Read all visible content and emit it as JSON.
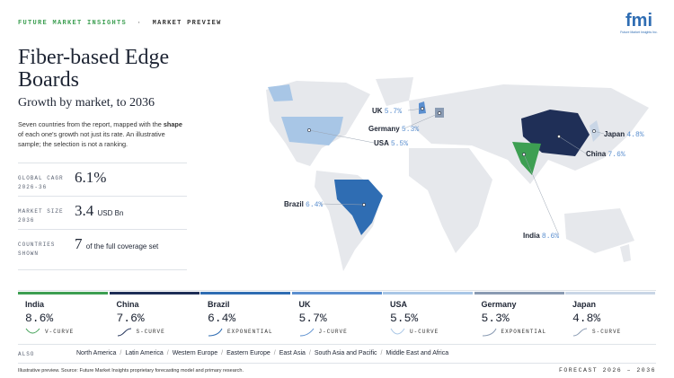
{
  "header": {
    "brand": "FUTURE MARKET INSIGHTS",
    "separator": "·",
    "section": "MARKET PREVIEW",
    "logo": "fmi",
    "logo_caption": "Future Market Insights Inc."
  },
  "title": "Fiber-based Edge Boards",
  "subtitle": "Growth by market, to 2036",
  "description": {
    "before": "Seven countries from the report, mapped with the ",
    "bold": "shape",
    "after": " of each one's growth not just its rate. An illustrative sample; the selection is not a ranking."
  },
  "stats": [
    {
      "label": "GLOBAL CAGR 2026-36",
      "value": "6.1%",
      "unit": ""
    },
    {
      "label": "MARKET SIZE 2036",
      "value": "3.4",
      "unit": "USD Bn"
    },
    {
      "label": "COUNTRIES SHOWN",
      "value": "7",
      "unit": "of the full coverage set"
    }
  ],
  "countries": [
    {
      "name": "India",
      "cagr": "8.6%",
      "curve": "V-CURVE",
      "color": "#3d9f52"
    },
    {
      "name": "China",
      "cagr": "7.6%",
      "curve": "S-CURVE",
      "color": "#1f2f57"
    },
    {
      "name": "Brazil",
      "cagr": "6.4%",
      "curve": "EXPONENTIAL",
      "color": "#2f6db3"
    },
    {
      "name": "UK",
      "cagr": "5.7%",
      "curve": "J-CURVE",
      "color": "#5b8fcf"
    },
    {
      "name": "USA",
      "cagr": "5.5%",
      "curve": "U-CURVE",
      "color": "#a8c6e6"
    },
    {
      "name": "Germany",
      "cagr": "5.3%",
      "curve": "EXPONENTIAL",
      "color": "#8a9bb3"
    },
    {
      "name": "Japan",
      "cagr": "4.8%",
      "curve": "S-CURVE",
      "color": "#c9d6e6"
    }
  ],
  "also": {
    "label": "ALSO",
    "regions": [
      "North America",
      "Latin America",
      "Western Europe",
      "Eastern Europe",
      "East Asia",
      "South Asia and Pacific",
      "Middle East and Africa"
    ]
  },
  "footer": {
    "source": "Illustrative preview. Source: Future Market Insights proprietary forecasting model and primary research.",
    "forecast": "FORECAST 2026 – 2036"
  }
}
